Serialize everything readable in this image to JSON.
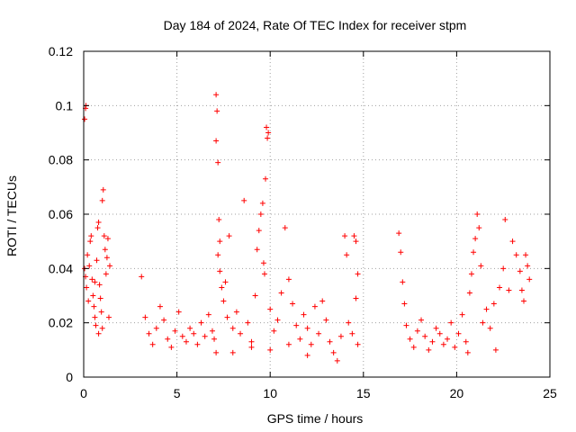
{
  "chart_data": {
    "type": "scatter",
    "title": "Day 184 of 2024, Rate Of TEC Index for receiver stpm",
    "xlabel": "GPS time / hours",
    "ylabel": "ROTI / TECUs",
    "xlim": [
      0,
      25
    ],
    "ylim": [
      0,
      0.12
    ],
    "grid": true,
    "marker": "plus",
    "color": "#ff0000",
    "x_ticks": [
      0,
      5,
      10,
      15,
      20,
      25
    ],
    "x_tick_labels": [
      "0",
      "5",
      "10",
      "15",
      "20",
      "25"
    ],
    "y_ticks": [
      0,
      0.02,
      0.04,
      0.06,
      0.08,
      0.1,
      0.12
    ],
    "y_tick_labels": [
      "0",
      "0.02",
      "0.04",
      "0.06",
      "0.08",
      "0.1",
      "0.12"
    ],
    "series": [
      {
        "name": "ROTI",
        "points": [
          [
            0.05,
            0.095
          ],
          [
            0.1,
            0.099
          ],
          [
            0.12,
            0.1
          ],
          [
            0.05,
            0.04
          ],
          [
            0.1,
            0.037
          ],
          [
            0.15,
            0.033
          ],
          [
            0.2,
            0.045
          ],
          [
            0.25,
            0.028
          ],
          [
            0.3,
            0.041
          ],
          [
            0.35,
            0.05
          ],
          [
            0.4,
            0.052
          ],
          [
            0.45,
            0.036
          ],
          [
            0.5,
            0.03
          ],
          [
            0.55,
            0.026
          ],
          [
            0.6,
            0.022
          ],
          [
            0.65,
            0.019
          ],
          [
            0.7,
            0.043
          ],
          [
            0.75,
            0.055
          ],
          [
            0.8,
            0.057
          ],
          [
            0.85,
            0.034
          ],
          [
            0.9,
            0.029
          ],
          [
            0.95,
            0.024
          ],
          [
            1.0,
            0.065
          ],
          [
            1.05,
            0.069
          ],
          [
            1.1,
            0.052
          ],
          [
            1.15,
            0.047
          ],
          [
            1.2,
            0.038
          ],
          [
            1.25,
            0.044
          ],
          [
            1.3,
            0.051
          ],
          [
            1.35,
            0.022
          ],
          [
            1.4,
            0.041
          ],
          [
            1.0,
            0.018
          ],
          [
            0.8,
            0.016
          ],
          [
            0.6,
            0.035
          ],
          [
            3.1,
            0.037
          ],
          [
            3.3,
            0.022
          ],
          [
            3.5,
            0.016
          ],
          [
            3.7,
            0.012
          ],
          [
            3.9,
            0.018
          ],
          [
            4.1,
            0.026
          ],
          [
            4.3,
            0.021
          ],
          [
            4.5,
            0.014
          ],
          [
            4.7,
            0.011
          ],
          [
            4.9,
            0.017
          ],
          [
            5.1,
            0.024
          ],
          [
            5.3,
            0.015
          ],
          [
            5.5,
            0.013
          ],
          [
            5.7,
            0.018
          ],
          [
            5.9,
            0.016
          ],
          [
            6.1,
            0.012
          ],
          [
            6.3,
            0.02
          ],
          [
            6.5,
            0.015
          ],
          [
            6.7,
            0.023
          ],
          [
            6.9,
            0.017
          ],
          [
            7.0,
            0.014
          ],
          [
            7.1,
            0.009
          ],
          [
            7.1,
            0.104
          ],
          [
            7.15,
            0.098
          ],
          [
            7.1,
            0.087
          ],
          [
            7.2,
            0.079
          ],
          [
            7.25,
            0.058
          ],
          [
            7.3,
            0.05
          ],
          [
            7.2,
            0.045
          ],
          [
            7.3,
            0.039
          ],
          [
            7.4,
            0.033
          ],
          [
            7.5,
            0.028
          ],
          [
            7.6,
            0.035
          ],
          [
            7.7,
            0.022
          ],
          [
            7.8,
            0.052
          ],
          [
            8.0,
            0.018
          ],
          [
            8.2,
            0.024
          ],
          [
            8.4,
            0.016
          ],
          [
            8.6,
            0.065
          ],
          [
            8.8,
            0.02
          ],
          [
            9.0,
            0.013
          ],
          [
            9.2,
            0.03
          ],
          [
            9.3,
            0.047
          ],
          [
            9.4,
            0.054
          ],
          [
            9.5,
            0.06
          ],
          [
            9.6,
            0.064
          ],
          [
            9.65,
            0.042
          ],
          [
            9.7,
            0.038
          ],
          [
            9.75,
            0.073
          ],
          [
            9.8,
            0.092
          ],
          [
            9.85,
            0.088
          ],
          [
            9.9,
            0.09
          ],
          [
            10.0,
            0.025
          ],
          [
            10.2,
            0.017
          ],
          [
            10.4,
            0.021
          ],
          [
            10.6,
            0.031
          ],
          [
            10.8,
            0.055
          ],
          [
            11.0,
            0.036
          ],
          [
            11.2,
            0.027
          ],
          [
            11.4,
            0.019
          ],
          [
            11.6,
            0.014
          ],
          [
            11.8,
            0.023
          ],
          [
            12.0,
            0.018
          ],
          [
            12.2,
            0.012
          ],
          [
            12.4,
            0.026
          ],
          [
            12.6,
            0.016
          ],
          [
            12.8,
            0.028
          ],
          [
            13.0,
            0.021
          ],
          [
            13.2,
            0.013
          ],
          [
            13.4,
            0.009
          ],
          [
            13.6,
            0.006
          ],
          [
            13.8,
            0.015
          ],
          [
            14.0,
            0.052
          ],
          [
            14.1,
            0.045
          ],
          [
            14.2,
            0.02
          ],
          [
            14.4,
            0.016
          ],
          [
            14.5,
            0.052
          ],
          [
            14.6,
            0.05
          ],
          [
            14.7,
            0.038
          ],
          [
            14.6,
            0.029
          ],
          [
            14.7,
            0.012
          ],
          [
            8.0,
            0.009
          ],
          [
            9.0,
            0.011
          ],
          [
            10.0,
            0.01
          ],
          [
            11.0,
            0.012
          ],
          [
            12.0,
            0.008
          ],
          [
            16.9,
            0.053
          ],
          [
            17.0,
            0.046
          ],
          [
            17.1,
            0.035
          ],
          [
            17.2,
            0.027
          ],
          [
            17.3,
            0.019
          ],
          [
            17.5,
            0.014
          ],
          [
            17.7,
            0.011
          ],
          [
            17.9,
            0.017
          ],
          [
            18.1,
            0.021
          ],
          [
            18.3,
            0.015
          ],
          [
            18.5,
            0.01
          ],
          [
            18.7,
            0.013
          ],
          [
            18.9,
            0.018
          ],
          [
            19.1,
            0.016
          ],
          [
            19.3,
            0.012
          ],
          [
            19.5,
            0.014
          ],
          [
            19.7,
            0.02
          ],
          [
            19.9,
            0.011
          ],
          [
            20.1,
            0.016
          ],
          [
            20.3,
            0.023
          ],
          [
            20.5,
            0.013
          ],
          [
            20.6,
            0.009
          ],
          [
            20.7,
            0.031
          ],
          [
            20.8,
            0.038
          ],
          [
            20.9,
            0.046
          ],
          [
            21.0,
            0.051
          ],
          [
            21.1,
            0.06
          ],
          [
            21.2,
            0.055
          ],
          [
            21.3,
            0.041
          ],
          [
            21.4,
            0.02
          ],
          [
            21.6,
            0.025
          ],
          [
            21.8,
            0.018
          ],
          [
            22.0,
            0.027
          ],
          [
            22.1,
            0.01
          ],
          [
            22.3,
            0.033
          ],
          [
            22.5,
            0.04
          ],
          [
            22.6,
            0.058
          ],
          [
            22.8,
            0.032
          ],
          [
            23.0,
            0.05
          ],
          [
            23.2,
            0.045
          ],
          [
            23.4,
            0.039
          ],
          [
            23.5,
            0.032
          ],
          [
            23.6,
            0.028
          ],
          [
            23.7,
            0.045
          ],
          [
            23.8,
            0.041
          ],
          [
            23.9,
            0.036
          ]
        ]
      }
    ]
  }
}
